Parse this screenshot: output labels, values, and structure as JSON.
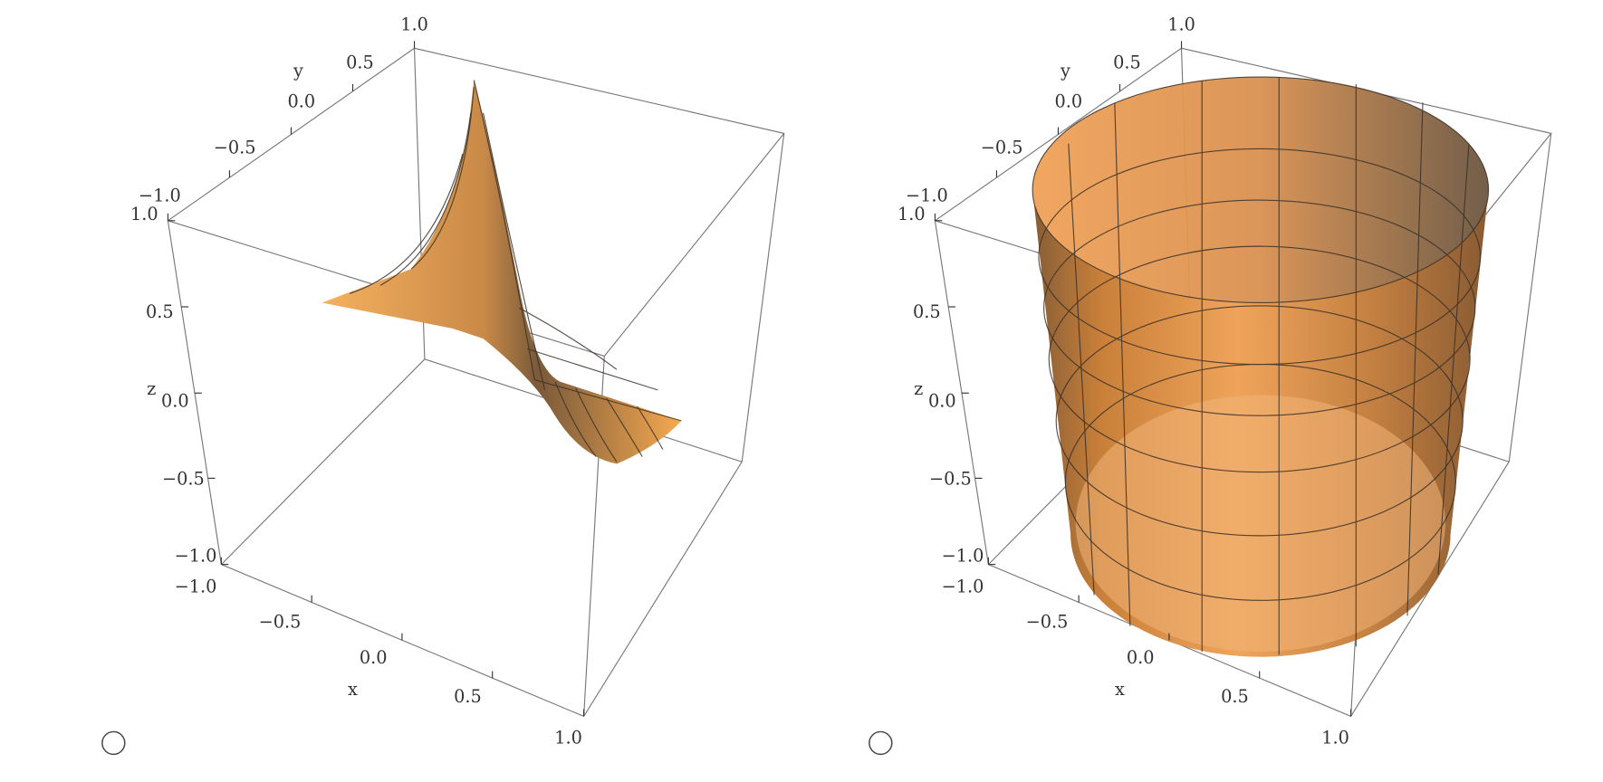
{
  "plots": [
    {
      "x_label": "x",
      "y_label": "y",
      "z_label": "z",
      "x_ticks": [
        "−1.0",
        "−0.5",
        "0.0",
        "0.5",
        "1.0"
      ],
      "y_ticks": [
        "−1.0",
        "−0.5",
        "0.0",
        "0.5",
        "1.0"
      ],
      "z_ticks": [
        "−1.0",
        "−0.5",
        "0.0",
        "0.5",
        "1.0"
      ]
    },
    {
      "x_label": "x",
      "y_label": "y",
      "z_label": "z",
      "x_ticks": [
        "−1.0",
        "−0.5",
        "0.0",
        "0.5",
        "1.0"
      ],
      "y_ticks": [
        "−1.0",
        "−0.5",
        "0.0",
        "0.5",
        "1.0"
      ],
      "z_ticks": [
        "−1.0",
        "−0.5",
        "0.0",
        "0.5",
        "1.0"
      ]
    }
  ]
}
